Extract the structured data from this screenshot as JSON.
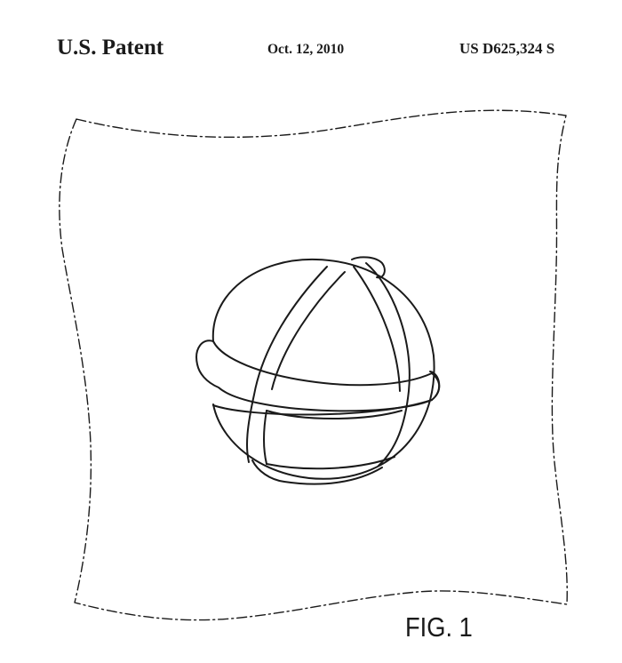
{
  "header": {
    "patent_label": "U.S. Patent",
    "date": "Oct. 12, 2010",
    "patent_number": "US D625,324 S"
  },
  "figure": {
    "label": "FIG. 1"
  }
}
